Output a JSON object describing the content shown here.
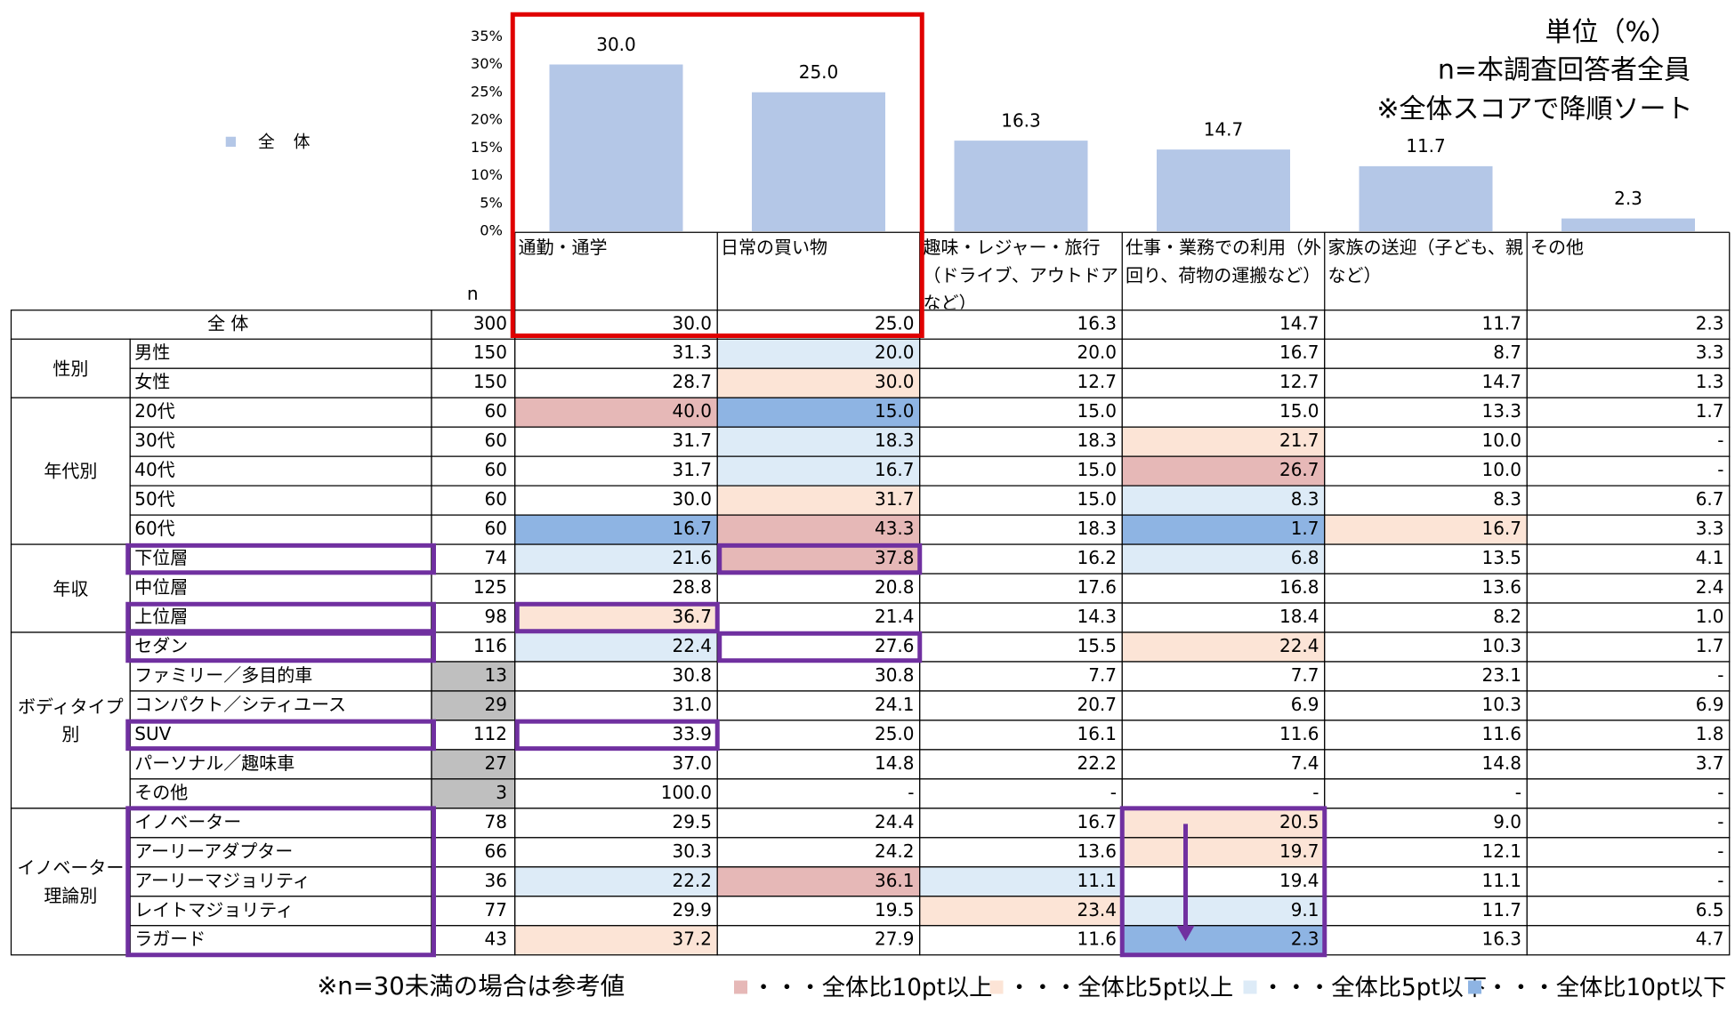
{
  "chart_data": {
    "type": "bar",
    "ylim": [
      0,
      35
    ],
    "yticks": [
      {
        "value": 0,
        "label": "0%"
      },
      {
        "value": 5,
        "label": "5%"
      },
      {
        "value": 10,
        "label": "10%"
      },
      {
        "value": 15,
        "label": "15%"
      },
      {
        "value": 20,
        "label": "20%"
      },
      {
        "value": 25,
        "label": "25%"
      },
      {
        "value": 30,
        "label": "30%"
      },
      {
        "value": 35,
        "label": "35%"
      }
    ],
    "categories": [
      "通勤・通学",
      "日常の買い物",
      "趣味・レジャー・旅行（ドライブ、アウトドアなど）",
      "仕事・業務での利用（外回り、荷物の運搬など）",
      "家族の送迎（子ども、親など）",
      "その他"
    ],
    "series": [
      {
        "name": "全 体",
        "color": "#b4c7e7",
        "values": [
          30.0,
          25.0,
          16.3,
          14.7,
          11.7,
          2.3
        ],
        "value_labels": [
          "30.0",
          "25.0",
          "16.3",
          "14.7",
          "11.7",
          "2.3"
        ]
      }
    ],
    "legend": "top-left"
  },
  "notes": {
    "unit": "単位（%）",
    "base": "n=本調査回答者全員",
    "sort": "※全体スコアで降順ソート",
    "reference": "※n=30未満の場合は参考値"
  },
  "highlight_legend": [
    {
      "label": "・・・全体比10pt以上",
      "color": "#e6b8b7"
    },
    {
      "label": "・・・全体比5pt以上",
      "color": "#fce4d6"
    },
    {
      "label": "・・・全体比5pt以下",
      "color": "#ddebf7"
    },
    {
      "label": "・・・全体比10pt以下",
      "color": "#8eb4e3"
    }
  ],
  "table": {
    "n_header": "n",
    "reference_color": "#bfbfbf",
    "total": {
      "label": "全 体",
      "n": 300,
      "values": [
        "30.0",
        "25.0",
        "16.3",
        "14.7",
        "11.7",
        "2.3"
      ]
    },
    "groups": [
      {
        "label": "性別",
        "rows": [
          {
            "label": "男性",
            "n": 150,
            "values": [
              "31.3",
              "20.0",
              "20.0",
              "16.7",
              "8.7",
              "3.3"
            ],
            "levels": [
              null,
              2,
              null,
              null,
              null,
              null
            ]
          },
          {
            "label": "女性",
            "n": 150,
            "values": [
              "28.7",
              "30.0",
              "12.7",
              "12.7",
              "14.7",
              "1.3"
            ],
            "levels": [
              null,
              1,
              null,
              null,
              null,
              null
            ]
          }
        ]
      },
      {
        "label": "年代別",
        "rows": [
          {
            "label": "20代",
            "n": 60,
            "values": [
              "40.0",
              "15.0",
              "15.0",
              "15.0",
              "13.3",
              "1.7"
            ],
            "levels": [
              0,
              3,
              null,
              null,
              null,
              null
            ]
          },
          {
            "label": "30代",
            "n": 60,
            "values": [
              "31.7",
              "18.3",
              "18.3",
              "21.7",
              "10.0",
              "-"
            ],
            "levels": [
              null,
              2,
              null,
              1,
              null,
              null
            ]
          },
          {
            "label": "40代",
            "n": 60,
            "values": [
              "31.7",
              "16.7",
              "15.0",
              "26.7",
              "10.0",
              "-"
            ],
            "levels": [
              null,
              2,
              null,
              0,
              null,
              null
            ]
          },
          {
            "label": "50代",
            "n": 60,
            "values": [
              "30.0",
              "31.7",
              "15.0",
              "8.3",
              "8.3",
              "6.7"
            ],
            "levels": [
              null,
              1,
              null,
              2,
              null,
              null
            ]
          },
          {
            "label": "60代",
            "n": 60,
            "values": [
              "16.7",
              "43.3",
              "18.3",
              "1.7",
              "16.7",
              "3.3"
            ],
            "levels": [
              3,
              0,
              null,
              3,
              1,
              null
            ]
          }
        ]
      },
      {
        "label": "年収",
        "rows": [
          {
            "label": "下位層",
            "n": 74,
            "values": [
              "21.6",
              "37.8",
              "16.2",
              "6.8",
              "13.5",
              "4.1"
            ],
            "levels": [
              2,
              0,
              null,
              2,
              null,
              null
            ]
          },
          {
            "label": "中位層",
            "n": 125,
            "values": [
              "28.8",
              "20.8",
              "17.6",
              "16.8",
              "13.6",
              "2.4"
            ],
            "levels": [
              null,
              null,
              null,
              null,
              null,
              null
            ]
          },
          {
            "label": "上位層",
            "n": 98,
            "values": [
              "36.7",
              "21.4",
              "14.3",
              "18.4",
              "8.2",
              "1.0"
            ],
            "levels": [
              1,
              null,
              null,
              null,
              null,
              null
            ]
          }
        ]
      },
      {
        "label": "ボディタイプ別",
        "rows": [
          {
            "label": "セダン",
            "n": 116,
            "values": [
              "22.4",
              "27.6",
              "15.5",
              "22.4",
              "10.3",
              "1.7"
            ],
            "levels": [
              2,
              null,
              null,
              1,
              null,
              null
            ]
          },
          {
            "label": "ファミリー／多目的車",
            "n": 13,
            "reference": true,
            "values": [
              "30.8",
              "30.8",
              "7.7",
              "7.7",
              "23.1",
              "-"
            ],
            "levels": [
              null,
              null,
              null,
              null,
              null,
              null
            ]
          },
          {
            "label": "コンパクト／シティユース",
            "n": 29,
            "reference": true,
            "values": [
              "31.0",
              "24.1",
              "20.7",
              "6.9",
              "10.3",
              "6.9"
            ],
            "levels": [
              null,
              null,
              null,
              null,
              null,
              null
            ]
          },
          {
            "label": "SUV",
            "n": 112,
            "values": [
              "33.9",
              "25.0",
              "16.1",
              "11.6",
              "11.6",
              "1.8"
            ],
            "levels": [
              null,
              null,
              null,
              null,
              null,
              null
            ]
          },
          {
            "label": "パーソナル／趣味車",
            "n": 27,
            "reference": true,
            "values": [
              "37.0",
              "14.8",
              "22.2",
              "7.4",
              "14.8",
              "3.7"
            ],
            "levels": [
              null,
              null,
              null,
              null,
              null,
              null
            ]
          },
          {
            "label": "その他",
            "n": 3,
            "reference": true,
            "values": [
              "100.0",
              "-",
              "-",
              "-",
              "-",
              "-"
            ],
            "levels": [
              null,
              null,
              null,
              null,
              null,
              null
            ]
          }
        ]
      },
      {
        "label": "イノベーター理論別",
        "rows": [
          {
            "label": "イノベーター",
            "n": 78,
            "values": [
              "29.5",
              "24.4",
              "16.7",
              "20.5",
              "9.0",
              "-"
            ],
            "levels": [
              null,
              null,
              null,
              1,
              null,
              null
            ]
          },
          {
            "label": "アーリーアダプター",
            "n": 66,
            "values": [
              "30.3",
              "24.2",
              "13.6",
              "19.7",
              "12.1",
              "-"
            ],
            "levels": [
              null,
              null,
              null,
              1,
              null,
              null
            ]
          },
          {
            "label": "アーリーマジョリティ",
            "n": 36,
            "values": [
              "22.2",
              "36.1",
              "11.1",
              "19.4",
              "11.1",
              "-"
            ],
            "levels": [
              2,
              0,
              2,
              null,
              null,
              null
            ]
          },
          {
            "label": "レイトマジョリティ",
            "n": 77,
            "values": [
              "29.9",
              "19.5",
              "23.4",
              "9.1",
              "11.7",
              "6.5"
            ],
            "levels": [
              null,
              null,
              1,
              2,
              null,
              null
            ]
          },
          {
            "label": "ラガード",
            "n": 43,
            "values": [
              "37.2",
              "27.9",
              "11.6",
              "2.3",
              "16.3",
              "4.7"
            ],
            "levels": [
              1,
              null,
              null,
              3,
              null,
              null
            ]
          }
        ]
      }
    ]
  }
}
